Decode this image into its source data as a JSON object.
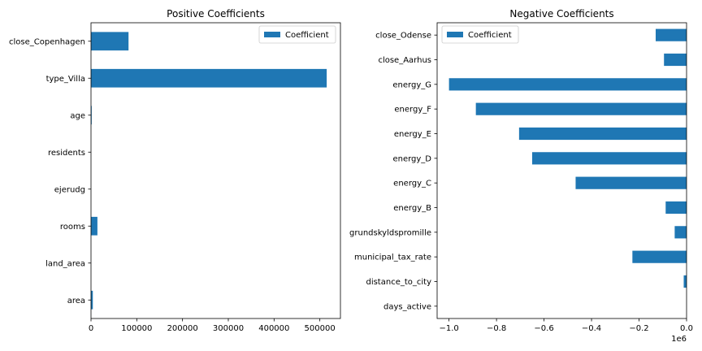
{
  "chart_data": [
    {
      "type": "bar",
      "orientation": "horizontal",
      "title": "Positive Coefficients",
      "categories": [
        "close_Copenhagen",
        "type_Villa",
        "age",
        "residents",
        "ejerudg",
        "rooms",
        "land_area",
        "area"
      ],
      "series": [
        {
          "name": "Coefficient",
          "values": [
            82000,
            515000,
            1500,
            0,
            0,
            14000,
            0,
            4000
          ]
        }
      ],
      "xlim": [
        0,
        545000
      ],
      "xticks": [
        0,
        100000,
        200000,
        300000,
        400000,
        500000
      ],
      "xtick_labels": [
        "0",
        "100000",
        "200000",
        "300000",
        "400000",
        "500000"
      ],
      "legend": "top-right",
      "color": "#1f77b4"
    },
    {
      "type": "bar",
      "orientation": "horizontal",
      "title": "Negative Coefficients",
      "categories": [
        "close_Odense",
        "close_Aarhus",
        "energy_G",
        "energy_F",
        "energy_E",
        "energy_D",
        "energy_C",
        "energy_B",
        "grundskyldspromille",
        "municipal_tax_rate",
        "distance_to_city",
        "days_active"
      ],
      "series": [
        {
          "name": "Coefficient",
          "values": [
            -130000,
            -95000,
            -1000000,
            -887000,
            -705000,
            -650000,
            -467000,
            -88000,
            -50000,
            -228000,
            -12000,
            0
          ]
        }
      ],
      "xlim": [
        -1050000,
        0
      ],
      "xticks": [
        -1000000,
        -800000,
        -600000,
        -400000,
        -200000,
        0
      ],
      "xtick_labels": [
        "−1.0",
        "−0.8",
        "−0.6",
        "−0.4",
        "−0.2",
        "0.0"
      ],
      "offset_label": "1e6",
      "legend": "top-left",
      "color": "#1f77b4"
    }
  ]
}
